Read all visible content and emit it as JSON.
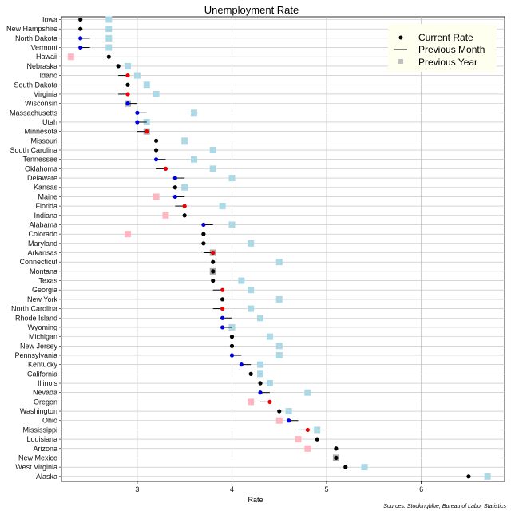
{
  "chart_data": {
    "type": "scatter",
    "title": "Unemployment Rate",
    "xlabel": "Rate",
    "ylabel": "",
    "xlim": [
      2.2,
      6.88
    ],
    "xticks": [
      3,
      4,
      5,
      6
    ],
    "grid": true,
    "legend_position": "top-right",
    "source": "Sources: Stockingblue, Bureau of Labor Statistics",
    "legend": [
      {
        "key": "current",
        "label": "Current Rate"
      },
      {
        "key": "month",
        "label": "Previous Month"
      },
      {
        "key": "year",
        "label": "Previous Year"
      }
    ],
    "colors": {
      "current": "#000000",
      "improved": "#0000dd",
      "worsened": "#ee0000",
      "year_improved": "#add8e6",
      "year_worsened": "#ffb6c1",
      "year_same": "#a9a9a9",
      "grid": "#bebebe"
    },
    "categories": [
      "Iowa",
      "New Hampshire",
      "North Dakota",
      "Vermont",
      "Hawaii",
      "Nebraska",
      "Idaho",
      "South Dakota",
      "Virginia",
      "Wisconsin",
      "Massachusetts",
      "Utah",
      "Minnesota",
      "Missouri",
      "South Carolina",
      "Tennessee",
      "Oklahoma",
      "Delaware",
      "Kansas",
      "Maine",
      "Florida",
      "Indiana",
      "Alabama",
      "Colorado",
      "Maryland",
      "Arkansas",
      "Connecticut",
      "Montana",
      "Texas",
      "Georgia",
      "New York",
      "North Carolina",
      "Rhode Island",
      "Wyoming",
      "Michigan",
      "New Jersey",
      "Pennsylvania",
      "Kentucky",
      "California",
      "Illinois",
      "Nevada",
      "Oregon",
      "Washington",
      "Ohio",
      "Mississippi",
      "Louisiana",
      "Arizona",
      "New Mexico",
      "West Virginia",
      "Alaska"
    ],
    "series": [
      {
        "name": "Current Rate",
        "values": [
          2.4,
          2.4,
          2.4,
          2.4,
          2.7,
          2.8,
          2.9,
          2.9,
          2.9,
          2.9,
          3.0,
          3.0,
          3.1,
          3.2,
          3.2,
          3.2,
          3.3,
          3.4,
          3.4,
          3.4,
          3.5,
          3.5,
          3.7,
          3.7,
          3.7,
          3.8,
          3.8,
          3.8,
          3.8,
          3.9,
          3.9,
          3.9,
          3.9,
          3.9,
          4.0,
          4.0,
          4.0,
          4.1,
          4.2,
          4.3,
          4.3,
          4.4,
          4.5,
          4.6,
          4.8,
          4.9,
          5.1,
          5.1,
          5.2,
          6.5
        ]
      },
      {
        "name": "Previous Month",
        "values": [
          2.4,
          2.4,
          2.5,
          2.5,
          2.7,
          2.8,
          2.8,
          2.9,
          2.8,
          3.0,
          3.1,
          3.1,
          3.0,
          3.2,
          3.2,
          3.3,
          3.2,
          3.5,
          3.4,
          3.5,
          3.4,
          3.5,
          3.8,
          3.7,
          3.7,
          3.7,
          3.8,
          3.8,
          3.8,
          3.8,
          3.9,
          3.8,
          4.0,
          4.0,
          4.0,
          4.0,
          4.1,
          4.2,
          4.2,
          4.3,
          4.4,
          4.3,
          4.5,
          4.7,
          4.7,
          4.9,
          5.1,
          5.1,
          5.2,
          6.5
        ]
      },
      {
        "name": "Previous Year",
        "values": [
          2.7,
          2.7,
          2.7,
          2.7,
          2.3,
          2.9,
          3.0,
          3.1,
          3.2,
          2.9,
          3.6,
          3.1,
          3.1,
          3.5,
          3.8,
          3.6,
          3.8,
          4.0,
          3.5,
          3.2,
          3.9,
          3.3,
          4.0,
          2.9,
          4.2,
          3.8,
          4.5,
          3.8,
          4.1,
          4.2,
          4.5,
          4.2,
          4.3,
          4.0,
          4.4,
          4.5,
          4.5,
          4.3,
          4.3,
          4.4,
          4.8,
          4.2,
          4.6,
          4.5,
          4.9,
          4.7,
          4.8,
          5.1,
          5.4,
          6.7
        ]
      }
    ]
  }
}
